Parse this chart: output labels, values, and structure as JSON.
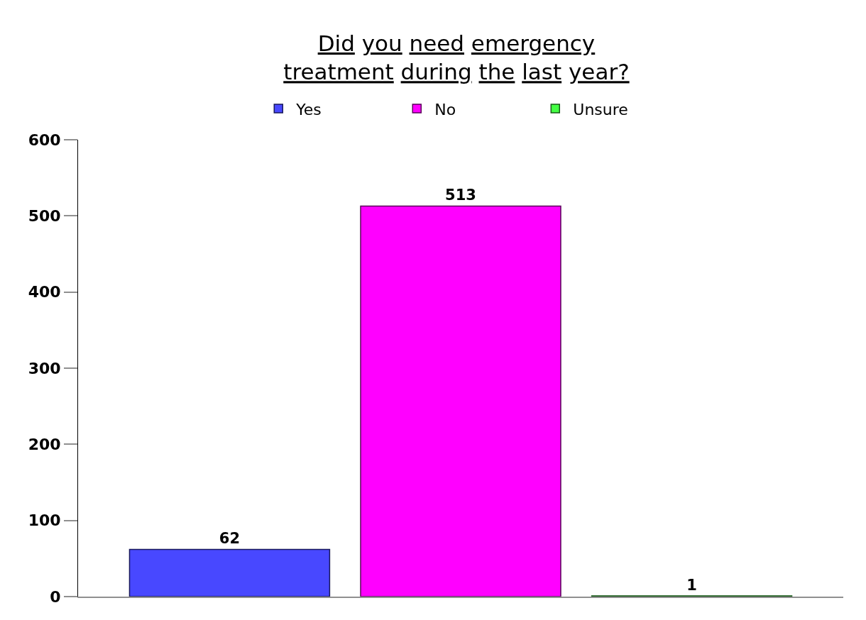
{
  "chart_data": {
    "type": "bar",
    "title": "Did you need emergency\ntreatment during the last year?",
    "categories": [
      null
    ],
    "series": [
      {
        "name": "Yes",
        "color": "#4848ff",
        "values": [
          62
        ]
      },
      {
        "name": "No",
        "color": "#ff00ff",
        "values": [
          513
        ]
      },
      {
        "name": "Unsure",
        "color": "#44ff44",
        "values": [
          1
        ]
      }
    ],
    "ylim": [
      0,
      600
    ],
    "yticks": [
      0,
      100,
      200,
      300,
      400,
      500,
      600
    ],
    "data_labels": true,
    "legend": "top",
    "grid": false
  }
}
